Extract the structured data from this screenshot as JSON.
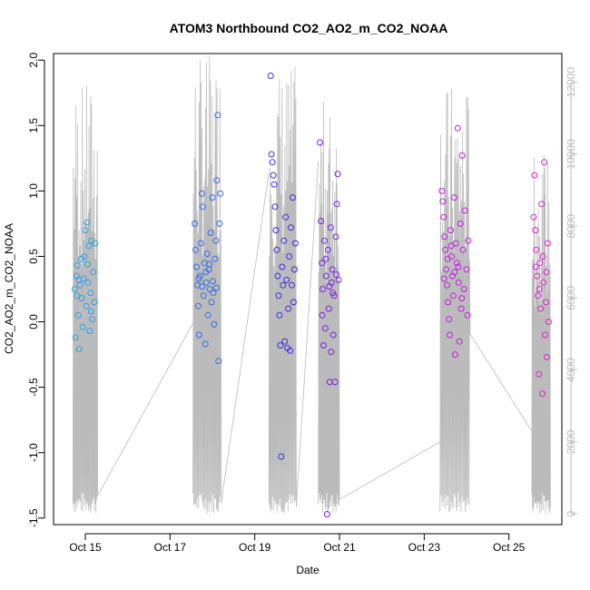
{
  "chart_data": {
    "type": "scatter",
    "title": "ATOM3 Northbound CO2_AO2_m_CO2_NOAA",
    "xlabel": "Date",
    "ylabel": "CO2_AO2_m_CO2_NOAA",
    "x_ticks": [
      "Oct 15",
      "Oct 17",
      "Oct 19",
      "Oct 21",
      "Oct 23",
      "Oct 25"
    ],
    "x_range": [
      "Oct 14 06:00",
      "Oct 26 06:00"
    ],
    "ylim": [
      -1.55,
      2.05
    ],
    "y_ticks": [
      "-1.5",
      "-1.0",
      "-0.5",
      "0.0",
      "0.5",
      "1.0",
      "1.5",
      "2.0"
    ],
    "y2lim": [
      -300,
      12800
    ],
    "y2_ticks": [
      "0",
      "2000",
      "4000",
      "6000",
      "8000",
      "10000",
      "12000"
    ],
    "grid": false,
    "point_style": "open circle",
    "secondary_series_color": "#bbbbbb",
    "series": [
      {
        "color": "#29a3e6",
        "points": [
          [
            "Oct 14 18:00",
            0.25
          ],
          [
            "Oct 14 18:30",
            -0.12
          ],
          [
            "Oct 14 19:00",
            0.35
          ],
          [
            "Oct 14 19:30",
            0.43
          ],
          [
            "Oct 14 20:00",
            0.05
          ],
          [
            "Oct 14 20:30",
            -0.21
          ],
          [
            "Oct 14 21:00",
            0.28
          ],
          [
            "Oct 14 21:30",
            0.48
          ],
          [
            "Oct 14 22:00",
            0.18
          ],
          [
            "Oct 14 22:30",
            -0.04
          ],
          [
            "Oct 14 23:00",
            0.33
          ],
          [
            "Oct 14 23:30",
            0.5
          ],
          [
            "Oct 15 00:00",
            0.7
          ],
          [
            "Oct 15 00:30",
            0.12
          ],
          [
            "Oct 15 01:00",
            0.76
          ],
          [
            "Oct 15 01:30",
            0.3
          ],
          [
            "Oct 15 02:00",
            0.58
          ],
          [
            "Oct 15 02:30",
            -0.07
          ],
          [
            "Oct 15 03:00",
            0.22
          ],
          [
            "Oct 15 03:30",
            0.62
          ],
          [
            "Oct 15 04:00",
            0.02
          ],
          [
            "Oct 15 04:30",
            0.38
          ],
          [
            "Oct 15 05:00",
            0.15
          ],
          [
            "Oct 15 05:30",
            0.6
          ],
          [
            "Oct 14 19:15",
            0.2
          ],
          [
            "Oct 14 20:15",
            0.32
          ],
          [
            "Oct 15 01:15",
            0.44
          ],
          [
            "Oct 15 03:15",
            0.08
          ]
        ]
      },
      {
        "color": "#2f6ee6",
        "points": [
          [
            "Oct 17 14:00",
            0.75
          ],
          [
            "Oct 17 14:30",
            0.55
          ],
          [
            "Oct 17 15:00",
            0.42
          ],
          [
            "Oct 17 15:30",
            0.28
          ],
          [
            "Oct 17 16:00",
            0.12
          ],
          [
            "Oct 17 16:30",
            -0.1
          ],
          [
            "Oct 17 17:00",
            0.35
          ],
          [
            "Oct 17 17:30",
            0.6
          ],
          [
            "Oct 17 18:00",
            0.98
          ],
          [
            "Oct 17 18:30",
            0.88
          ],
          [
            "Oct 17 19:00",
            0.2
          ],
          [
            "Oct 17 19:30",
            0.45
          ],
          [
            "Oct 17 20:00",
            -0.17
          ],
          [
            "Oct 17 20:30",
            0.3
          ],
          [
            "Oct 17 21:00",
            0.52
          ],
          [
            "Oct 17 21:30",
            0.05
          ],
          [
            "Oct 17 22:00",
            0.4
          ],
          [
            "Oct 17 22:30",
            0.25
          ],
          [
            "Oct 17 23:00",
            0.68
          ],
          [
            "Oct 17 23:30",
            0.15
          ],
          [
            "Oct 18 00:00",
            0.95
          ],
          [
            "Oct 18 00:30",
            0.22
          ],
          [
            "Oct 18 01:00",
            -0.02
          ],
          [
            "Oct 18 01:30",
            0.48
          ],
          [
            "Oct 18 02:00",
            0.62
          ],
          [
            "Oct 18 02:30",
            1.08
          ],
          [
            "Oct 18 03:00",
            1.58
          ],
          [
            "Oct 18 03:30",
            -0.3
          ],
          [
            "Oct 18 04:00",
            0.75
          ],
          [
            "Oct 18 04:30",
            0.98
          ],
          [
            "Oct 17 16:15",
            0.33
          ],
          [
            "Oct 17 18:15",
            0.27
          ],
          [
            "Oct 17 20:15",
            0.38
          ],
          [
            "Oct 17 22:15",
            0.44
          ],
          [
            "Oct 18 00:15",
            0.31
          ],
          [
            "Oct 18 02:15",
            0.26
          ]
        ]
      },
      {
        "color": "#3a2fe0",
        "points": [
          [
            "Oct 19 09:00",
            1.88
          ],
          [
            "Oct 19 09:30",
            1.28
          ],
          [
            "Oct 19 10:00",
            1.22
          ],
          [
            "Oct 19 10:30",
            1.12
          ],
          [
            "Oct 19 11:00",
            1.05
          ],
          [
            "Oct 19 11:30",
            0.88
          ],
          [
            "Oct 19 12:00",
            0.7
          ],
          [
            "Oct 19 12:30",
            0.55
          ],
          [
            "Oct 19 13:00",
            0.35
          ],
          [
            "Oct 19 13:30",
            0.2
          ],
          [
            "Oct 19 14:00",
            0.05
          ],
          [
            "Oct 19 14:30",
            -0.18
          ],
          [
            "Oct 19 15:00",
            -1.03
          ],
          [
            "Oct 19 15:30",
            0.42
          ],
          [
            "Oct 19 16:00",
            0.28
          ],
          [
            "Oct 19 16:30",
            0.62
          ],
          [
            "Oct 19 17:00",
            -0.15
          ],
          [
            "Oct 19 17:30",
            0.8
          ],
          [
            "Oct 19 18:00",
            0.32
          ],
          [
            "Oct 19 18:30",
            -0.2
          ],
          [
            "Oct 19 19:00",
            0.1
          ],
          [
            "Oct 19 19:30",
            0.5
          ],
          [
            "Oct 19 20:00",
            -0.22
          ],
          [
            "Oct 19 20:30",
            0.72
          ],
          [
            "Oct 19 21:00",
            0.28
          ],
          [
            "Oct 19 21:30",
            0.95
          ],
          [
            "Oct 19 22:00",
            0.15
          ],
          [
            "Oct 19 22:30",
            0.4
          ],
          [
            "Oct 19 23:00",
            0.6
          ]
        ]
      },
      {
        "color": "#7a1fe6",
        "points": [
          [
            "Oct 20 13:00",
            1.37
          ],
          [
            "Oct 20 13:30",
            0.77
          ],
          [
            "Oct 20 14:00",
            0.45
          ],
          [
            "Oct 20 14:30",
            0.25
          ],
          [
            "Oct 20 15:00",
            -0.18
          ],
          [
            "Oct 20 15:30",
            0.62
          ],
          [
            "Oct 20 16:00",
            -0.05
          ],
          [
            "Oct 20 16:30",
            0.35
          ],
          [
            "Oct 20 17:00",
            -1.47
          ],
          [
            "Oct 20 17:30",
            0.55
          ],
          [
            "Oct 20 18:00",
            0.1
          ],
          [
            "Oct 20 18:30",
            -0.46
          ],
          [
            "Oct 20 19:00",
            0.72
          ],
          [
            "Oct 20 19:30",
            0.3
          ],
          [
            "Oct 20 20:00",
            0.4
          ],
          [
            "Oct 20 20:30",
            -0.1
          ],
          [
            "Oct 20 21:00",
            0.2
          ],
          [
            "Oct 20 21:30",
            -0.46
          ],
          [
            "Oct 20 22:00",
            0.65
          ],
          [
            "Oct 20 22:30",
            0.9
          ],
          [
            "Oct 20 23:00",
            1.13
          ],
          [
            "Oct 20 23:30",
            0.32
          ],
          [
            "Oct 20 14:15",
            0.05
          ],
          [
            "Oct 20 16:15",
            0.48
          ],
          [
            "Oct 20 18:15",
            0.27
          ],
          [
            "Oct 20 20:15",
            0.22
          ],
          [
            "Oct 20 22:15",
            0.36
          ],
          [
            "Oct 20 19:15",
            -0.23
          ]
        ]
      },
      {
        "color": "#c21fe0",
        "points": [
          [
            "Oct 23 10:00",
            1.0
          ],
          [
            "Oct 23 10:30",
            0.92
          ],
          [
            "Oct 23 11:00",
            0.8
          ],
          [
            "Oct 23 11:30",
            0.65
          ],
          [
            "Oct 23 12:00",
            0.55
          ],
          [
            "Oct 23 12:30",
            0.4
          ],
          [
            "Oct 23 13:00",
            0.28
          ],
          [
            "Oct 23 13:30",
            0.15
          ],
          [
            "Oct 23 14:00",
            0.02
          ],
          [
            "Oct 23 14:30",
            -0.1
          ],
          [
            "Oct 23 15:00",
            0.7
          ],
          [
            "Oct 23 15:30",
            0.5
          ],
          [
            "Oct 23 16:00",
            0.35
          ],
          [
            "Oct 23 16:30",
            0.2
          ],
          [
            "Oct 23 17:00",
            0.95
          ],
          [
            "Oct 23 17:30",
            -0.25
          ],
          [
            "Oct 23 18:00",
            0.6
          ],
          [
            "Oct 23 18:30",
            0.45
          ],
          [
            "Oct 23 19:00",
            1.48
          ],
          [
            "Oct 23 19:30",
            0.3
          ],
          [
            "Oct 23 20:00",
            -0.15
          ],
          [
            "Oct 23 20:30",
            0.75
          ],
          [
            "Oct 23 21:00",
            0.1
          ],
          [
            "Oct 23 21:30",
            1.27
          ],
          [
            "Oct 23 22:00",
            0.55
          ],
          [
            "Oct 23 22:30",
            0.25
          ],
          [
            "Oct 23 23:00",
            0.85
          ],
          [
            "Oct 24 00:00",
            0.4
          ],
          [
            "Oct 24 00:30",
            0.05
          ],
          [
            "Oct 24 01:00",
            0.62
          ],
          [
            "Oct 23 11:15",
            0.33
          ],
          [
            "Oct 23 13:15",
            0.48
          ],
          [
            "Oct 23 15:15",
            0.58
          ],
          [
            "Oct 23 17:15",
            0.38
          ],
          [
            "Oct 23 19:15",
            0.42
          ],
          [
            "Oct 23 21:15",
            0.18
          ]
        ]
      },
      {
        "color": "#e020d0",
        "points": [
          [
            "Oct 25 14:00",
            0.8
          ],
          [
            "Oct 25 14:30",
            1.12
          ],
          [
            "Oct 25 15:00",
            0.7
          ],
          [
            "Oct 25 15:30",
            0.55
          ],
          [
            "Oct 25 16:00",
            0.35
          ],
          [
            "Oct 25 16:30",
            0.2
          ],
          [
            "Oct 25 17:00",
            -0.4
          ],
          [
            "Oct 25 17:30",
            0.45
          ],
          [
            "Oct 25 18:00",
            0.1
          ],
          [
            "Oct 25 18:30",
            0.9
          ],
          [
            "Oct 25 19:00",
            -0.55
          ],
          [
            "Oct 25 19:30",
            0.3
          ],
          [
            "Oct 25 20:00",
            1.22
          ],
          [
            "Oct 25 20:30",
            -0.1
          ],
          [
            "Oct 25 21:00",
            0.15
          ],
          [
            "Oct 25 21:30",
            -0.27
          ],
          [
            "Oct 25 22:00",
            0.6
          ],
          [
            "Oct 25 22:30",
            0.0
          ],
          [
            "Oct 25 15:15",
            0.42
          ],
          [
            "Oct 25 17:15",
            0.25
          ],
          [
            "Oct 25 19:15",
            0.5
          ],
          [
            "Oct 25 21:15",
            0.38
          ]
        ]
      }
    ],
    "secondary_series": {
      "name": "",
      "flight_segments": [
        {
          "start": "Oct 14 17:00",
          "end": "Oct 15 07:00",
          "min": 0,
          "max": 12000,
          "end_value": 500
        },
        {
          "start": "Oct 17 13:00",
          "end": "Oct 18 05:00",
          "min": 0,
          "max": 12800,
          "end_value": 300
        },
        {
          "start": "Oct 19 08:00",
          "end": "Oct 19 23:30",
          "min": 0,
          "max": 12500,
          "end_value": 200
        },
        {
          "start": "Oct 20 12:00",
          "end": "Oct 21 00:00",
          "min": 0,
          "max": 11500,
          "end_value": 400
        },
        {
          "start": "Oct 23 09:00",
          "end": "Oct 24 02:00",
          "min": 0,
          "max": 12000,
          "end_value": 5000
        },
        {
          "start": "Oct 25 13:00",
          "end": "Oct 25 23:30",
          "min": 0,
          "max": 10000,
          "end_value": 200
        }
      ],
      "transits": [
        [
          [
            "Oct 15 07:00",
            500
          ],
          [
            "Oct 17 13:00",
            5300
          ]
        ],
        [
          [
            "Oct 18 05:00",
            300
          ],
          [
            "Oct 19 08:00",
            9500
          ]
        ],
        [
          [
            "Oct 19 23:30",
            200
          ],
          [
            "Oct 20 12:00",
            9800
          ]
        ],
        [
          [
            "Oct 21 00:00",
            400
          ],
          [
            "Oct 23 09:00",
            2000
          ]
        ],
        [
          [
            "Oct 24 02:00",
            5000
          ],
          [
            "Oct 25 13:00",
            2300
          ]
        ]
      ]
    }
  }
}
